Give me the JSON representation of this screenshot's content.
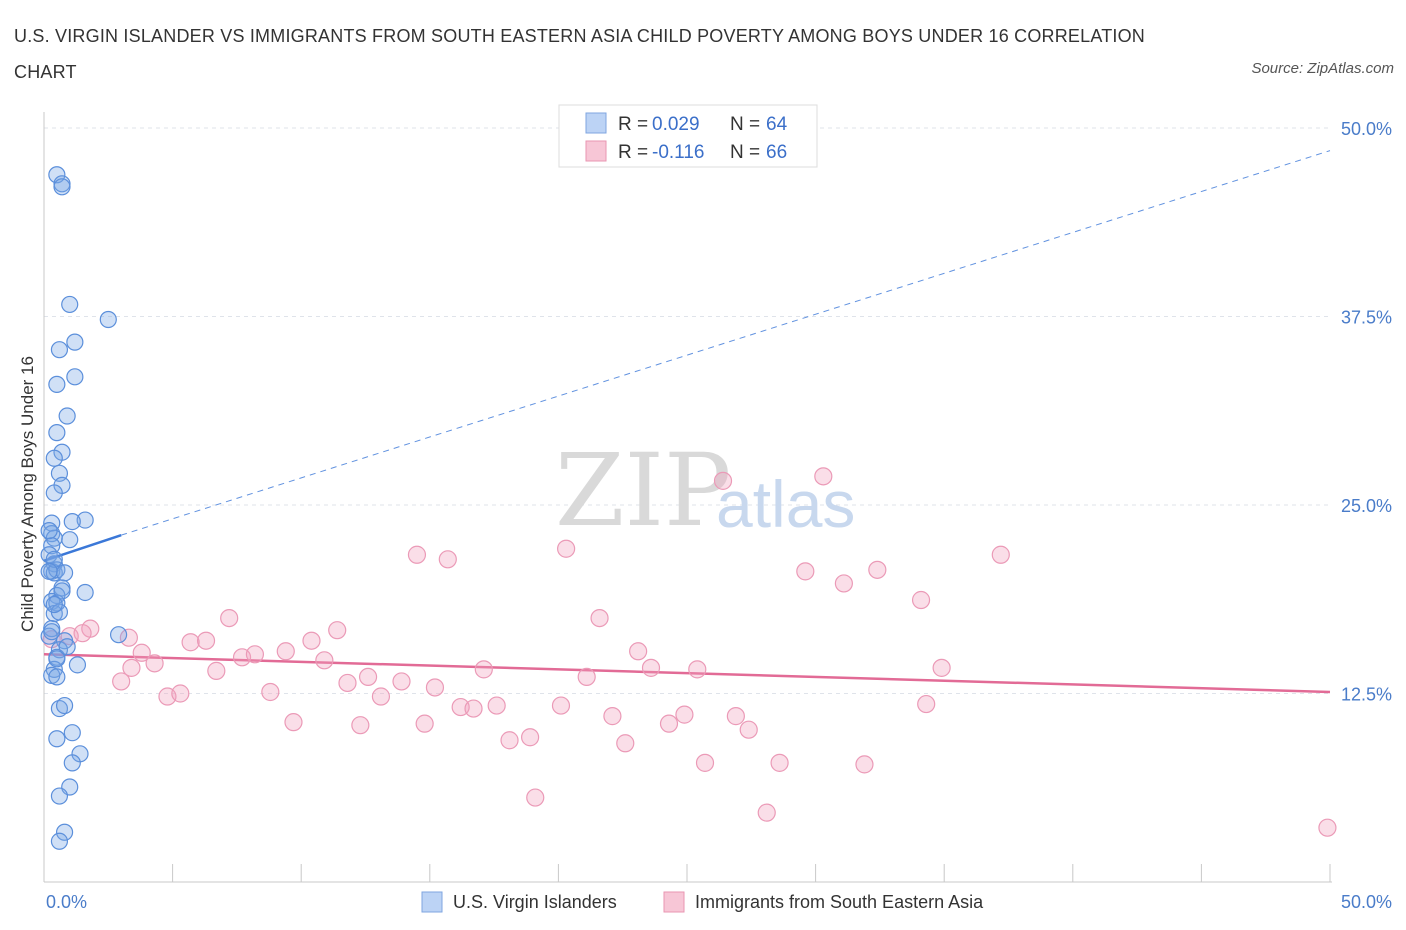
{
  "title": "U.S. VIRGIN ISLANDER VS IMMIGRANTS FROM SOUTH EASTERN ASIA CHILD POVERTY AMONG BOYS UNDER 16 CORRELATION CHART",
  "source": "Source: ZipAtlas.com",
  "colors": {
    "blue": "#3b78d8",
    "blue_fill": "rgba(120,165,230,0.35)",
    "pink": "#e26b96",
    "pink_fill": "rgba(240,160,190,0.35)",
    "tick_label": "#4a7cc9",
    "grid": "#dfe3ea"
  },
  "chart_data": {
    "type": "scatter",
    "title": "U.S. VIRGIN ISLANDER VS IMMIGRANTS FROM SOUTH EASTERN ASIA CHILD POVERTY AMONG BOYS UNDER 16 CORRELATION CHART",
    "xlabel": "",
    "ylabel": "Child Poverty Among Boys Under 16",
    "xlim": [
      0,
      50
    ],
    "ylim": [
      0,
      50
    ],
    "x_tick_labels": [
      "0.0%",
      "50.0%"
    ],
    "y_ticks": [
      12.5,
      25.0,
      37.5,
      50.0
    ],
    "y_tick_labels": [
      "12.5%",
      "25.0%",
      "37.5%",
      "50.0%"
    ],
    "legend": [
      {
        "name": "U.S. Virgin Islanders",
        "r_label": "R =",
        "r_value": "0.029",
        "n_label": "N =",
        "n_value": "64"
      },
      {
        "name": "Immigrants from South Eastern Asia",
        "r_label": "R =",
        "r_value": "-0.116",
        "n_label": "N =",
        "n_value": "66"
      }
    ],
    "series": [
      {
        "name": "U.S. Virgin Islanders",
        "color": "#3b78d8",
        "trend": {
          "solid": [
            [
              0,
              21.3
            ],
            [
              3.0,
              23.0
            ]
          ],
          "dashed": [
            [
              3.0,
              23.0
            ],
            [
              50,
              48.5
            ]
          ]
        },
        "points": [
          [
            0.5,
            46.9
          ],
          [
            0.7,
            46.3
          ],
          [
            0.7,
            46.1
          ],
          [
            1.0,
            38.3
          ],
          [
            2.5,
            37.3
          ],
          [
            1.2,
            35.8
          ],
          [
            0.6,
            35.3
          ],
          [
            0.5,
            33.0
          ],
          [
            1.2,
            33.5
          ],
          [
            0.9,
            30.9
          ],
          [
            0.5,
            29.8
          ],
          [
            0.7,
            28.5
          ],
          [
            0.4,
            28.1
          ],
          [
            0.6,
            27.1
          ],
          [
            0.7,
            26.3
          ],
          [
            0.4,
            25.8
          ],
          [
            1.6,
            24.0
          ],
          [
            1.1,
            23.9
          ],
          [
            0.3,
            23.8
          ],
          [
            0.3,
            23.1
          ],
          [
            0.4,
            22.8
          ],
          [
            1.0,
            22.7
          ],
          [
            0.3,
            22.3
          ],
          [
            0.2,
            21.7
          ],
          [
            0.4,
            21.1
          ],
          [
            0.3,
            20.6
          ],
          [
            0.4,
            20.5
          ],
          [
            0.5,
            20.7
          ],
          [
            0.8,
            20.5
          ],
          [
            0.7,
            19.5
          ],
          [
            0.5,
            19.0
          ],
          [
            1.6,
            19.2
          ],
          [
            0.3,
            18.6
          ],
          [
            0.5,
            18.5
          ],
          [
            0.4,
            17.8
          ],
          [
            0.3,
            16.8
          ],
          [
            2.9,
            16.4
          ],
          [
            0.2,
            16.3
          ],
          [
            0.8,
            16.0
          ],
          [
            0.6,
            15.4
          ],
          [
            0.5,
            14.9
          ],
          [
            1.3,
            14.4
          ],
          [
            0.4,
            14.1
          ],
          [
            0.3,
            13.7
          ],
          [
            0.5,
            13.6
          ],
          [
            0.6,
            11.5
          ],
          [
            0.8,
            11.7
          ],
          [
            1.1,
            9.9
          ],
          [
            0.5,
            9.5
          ],
          [
            1.4,
            8.5
          ],
          [
            1.1,
            7.9
          ],
          [
            1.0,
            6.3
          ],
          [
            0.6,
            5.7
          ],
          [
            0.8,
            3.3
          ],
          [
            0.6,
            2.7
          ],
          [
            0.2,
            23.3
          ],
          [
            0.4,
            21.4
          ],
          [
            0.2,
            20.6
          ],
          [
            0.3,
            16.6
          ],
          [
            0.7,
            19.3
          ],
          [
            0.5,
            14.8
          ],
          [
            0.9,
            15.6
          ],
          [
            0.6,
            17.9
          ],
          [
            0.4,
            18.4
          ]
        ]
      },
      {
        "name": "Immigrants from South Eastern Asia",
        "color": "#e26b96",
        "trend": {
          "solid": [
            [
              0,
              15.1
            ],
            [
              50,
              12.6
            ]
          ]
        },
        "points": [
          [
            0.3,
            16.1
          ],
          [
            1.0,
            16.3
          ],
          [
            1.8,
            16.8
          ],
          [
            3.3,
            16.2
          ],
          [
            3.8,
            15.2
          ],
          [
            4.3,
            14.5
          ],
          [
            3.0,
            13.3
          ],
          [
            3.4,
            14.2
          ],
          [
            4.8,
            12.3
          ],
          [
            5.3,
            12.5
          ],
          [
            5.7,
            15.9
          ],
          [
            6.3,
            16.0
          ],
          [
            6.7,
            14.0
          ],
          [
            7.2,
            17.5
          ],
          [
            7.7,
            14.9
          ],
          [
            8.2,
            15.1
          ],
          [
            8.8,
            12.6
          ],
          [
            9.4,
            15.3
          ],
          [
            9.7,
            10.6
          ],
          [
            10.4,
            16.0
          ],
          [
            10.9,
            14.7
          ],
          [
            11.4,
            16.7
          ],
          [
            11.8,
            13.2
          ],
          [
            12.3,
            10.4
          ],
          [
            12.6,
            13.6
          ],
          [
            13.1,
            12.3
          ],
          [
            13.9,
            13.3
          ],
          [
            14.5,
            21.7
          ],
          [
            14.8,
            10.5
          ],
          [
            15.2,
            12.9
          ],
          [
            15.7,
            21.4
          ],
          [
            16.2,
            11.6
          ],
          [
            16.7,
            11.5
          ],
          [
            17.1,
            14.1
          ],
          [
            17.6,
            11.7
          ],
          [
            18.1,
            9.4
          ],
          [
            18.9,
            9.6
          ],
          [
            19.1,
            5.6
          ],
          [
            20.1,
            11.7
          ],
          [
            20.3,
            22.1
          ],
          [
            21.1,
            13.6
          ],
          [
            21.6,
            17.5
          ],
          [
            22.1,
            11.0
          ],
          [
            22.6,
            9.2
          ],
          [
            23.1,
            15.3
          ],
          [
            23.6,
            14.2
          ],
          [
            24.3,
            10.5
          ],
          [
            24.9,
            11.1
          ],
          [
            25.4,
            14.1
          ],
          [
            25.7,
            7.9
          ],
          [
            26.4,
            26.6
          ],
          [
            26.9,
            11.0
          ],
          [
            27.4,
            10.1
          ],
          [
            28.1,
            4.6
          ],
          [
            28.6,
            7.9
          ],
          [
            29.6,
            20.6
          ],
          [
            30.3,
            26.9
          ],
          [
            31.1,
            19.8
          ],
          [
            31.9,
            7.8
          ],
          [
            32.4,
            20.7
          ],
          [
            34.1,
            18.7
          ],
          [
            34.3,
            11.8
          ],
          [
            34.9,
            14.2
          ],
          [
            37.2,
            21.7
          ],
          [
            49.9,
            3.6
          ],
          [
            1.5,
            16.5
          ]
        ]
      }
    ]
  }
}
